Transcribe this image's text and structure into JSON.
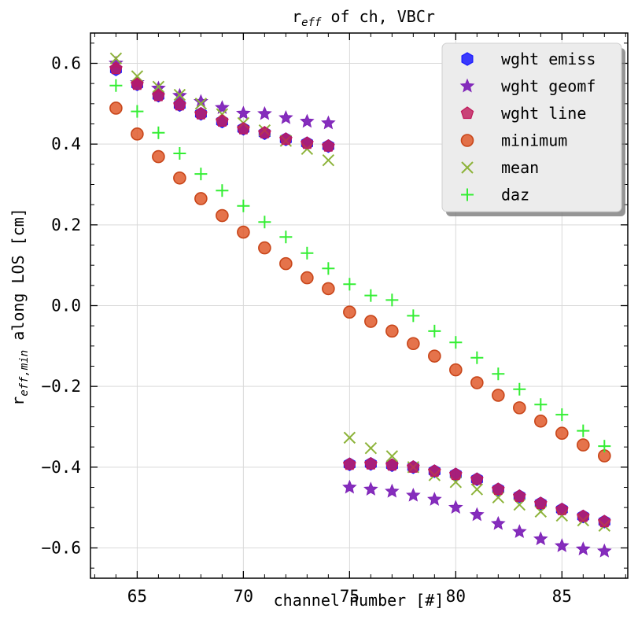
{
  "chart_data": {
    "type": "scatter",
    "title": "r_eff of ch, VBCr",
    "title_parts": {
      "main": "r",
      "sub": "eff",
      "rest": " of ch, VBCr"
    },
    "xlabel": "channel number [#]",
    "ylabel": "r_eff,min along LOS [cm]",
    "ylabel_parts": {
      "main": "r",
      "sub": "eff,min",
      "rest": " along LOS [cm]"
    },
    "xlim": [
      62.8,
      88.1
    ],
    "ylim": [
      -0.675,
      0.675
    ],
    "xticks": [
      65,
      70,
      75,
      80,
      85
    ],
    "xtick_labels": [
      "65",
      "70",
      "75",
      "80",
      "85"
    ],
    "yticks": [
      0.6,
      0.4,
      0.2,
      0.0,
      -0.2,
      -0.4,
      -0.6
    ],
    "ytick_labels": [
      "0.6",
      "0.4",
      "0.2",
      "0.0",
      "−0.2",
      "−0.4",
      "−0.6"
    ],
    "grid": true,
    "legend_position": "top-right",
    "series": [
      {
        "name": "wght emiss",
        "marker": "hexagon",
        "color": "#1a1aff",
        "x": [
          64,
          65,
          66,
          67,
          68,
          69,
          70,
          71,
          72,
          73,
          74,
          75,
          76,
          77,
          78,
          79,
          80,
          81,
          82,
          83,
          84,
          85,
          86,
          87
        ],
        "y": [
          0.585,
          0.548,
          0.52,
          0.497,
          0.475,
          0.456,
          0.438,
          0.427,
          0.412,
          0.402,
          0.395,
          -0.393,
          -0.392,
          -0.395,
          -0.4,
          -0.41,
          -0.418,
          -0.43,
          -0.455,
          -0.472,
          -0.49,
          -0.505,
          -0.522,
          -0.535
        ]
      },
      {
        "name": "wght geomf",
        "marker": "star",
        "color": "#7e22b8",
        "x": [
          64,
          65,
          66,
          67,
          68,
          69,
          70,
          71,
          72,
          73,
          74,
          75,
          76,
          77,
          78,
          79,
          80,
          81,
          82,
          83,
          84,
          85,
          86,
          87
        ],
        "y": [
          0.6,
          0.552,
          0.538,
          0.52,
          0.505,
          0.49,
          0.476,
          0.475,
          0.465,
          0.456,
          0.452,
          -0.45,
          -0.455,
          -0.46,
          -0.47,
          -0.48,
          -0.5,
          -0.518,
          -0.54,
          -0.56,
          -0.578,
          -0.595,
          -0.603,
          -0.608
        ]
      },
      {
        "name": "wght line",
        "marker": "pentagon",
        "color": "#c0185a",
        "x": [
          64,
          65,
          66,
          67,
          68,
          69,
          70,
          71,
          72,
          73,
          74,
          75,
          76,
          77,
          78,
          79,
          80,
          81,
          82,
          83,
          84,
          85,
          86,
          87
        ],
        "y": [
          0.587,
          0.548,
          0.52,
          0.497,
          0.475,
          0.457,
          0.438,
          0.428,
          0.412,
          0.402,
          0.395,
          -0.393,
          -0.392,
          -0.395,
          -0.4,
          -0.41,
          -0.418,
          -0.43,
          -0.455,
          -0.472,
          -0.49,
          -0.505,
          -0.522,
          -0.535
        ]
      },
      {
        "name": "minimum",
        "marker": "circle",
        "color": "#e05a2b",
        "x": [
          64,
          65,
          66,
          67,
          68,
          69,
          70,
          71,
          72,
          73,
          74,
          75,
          76,
          77,
          78,
          79,
          80,
          81,
          82,
          83,
          84,
          85,
          86,
          87
        ],
        "y": [
          0.489,
          0.425,
          0.369,
          0.316,
          0.265,
          0.223,
          0.182,
          0.143,
          0.104,
          0.069,
          0.042,
          -0.016,
          -0.039,
          -0.063,
          -0.094,
          -0.125,
          -0.159,
          -0.191,
          -0.222,
          -0.253,
          -0.286,
          -0.316,
          -0.345,
          -0.372
        ]
      },
      {
        "name": "mean",
        "marker": "x",
        "color": "#8db33a",
        "x": [
          64,
          65,
          66,
          67,
          68,
          69,
          70,
          71,
          72,
          73,
          74,
          75,
          76,
          77,
          78,
          79,
          80,
          81,
          82,
          83,
          84,
          85,
          86,
          87
        ],
        "y": [
          0.612,
          0.568,
          0.542,
          0.522,
          0.5,
          0.474,
          0.452,
          0.434,
          0.408,
          0.388,
          0.36,
          -0.327,
          -0.353,
          -0.373,
          -0.4,
          -0.42,
          -0.437,
          -0.455,
          -0.475,
          -0.493,
          -0.51,
          -0.52,
          -0.532,
          -0.545
        ]
      },
      {
        "name": "daz",
        "marker": "plus",
        "color": "#33ee33",
        "x": [
          64,
          65,
          66,
          67,
          68,
          69,
          70,
          71,
          72,
          73,
          74,
          75,
          76,
          77,
          78,
          79,
          80,
          81,
          82,
          83,
          84,
          85,
          86,
          87
        ],
        "y": [
          0.545,
          0.481,
          0.428,
          0.377,
          0.326,
          0.285,
          0.247,
          0.207,
          0.17,
          0.13,
          0.092,
          0.053,
          0.025,
          0.014,
          -0.025,
          -0.063,
          -0.091,
          -0.129,
          -0.169,
          -0.207,
          -0.245,
          -0.27,
          -0.31,
          -0.348
        ]
      }
    ]
  }
}
